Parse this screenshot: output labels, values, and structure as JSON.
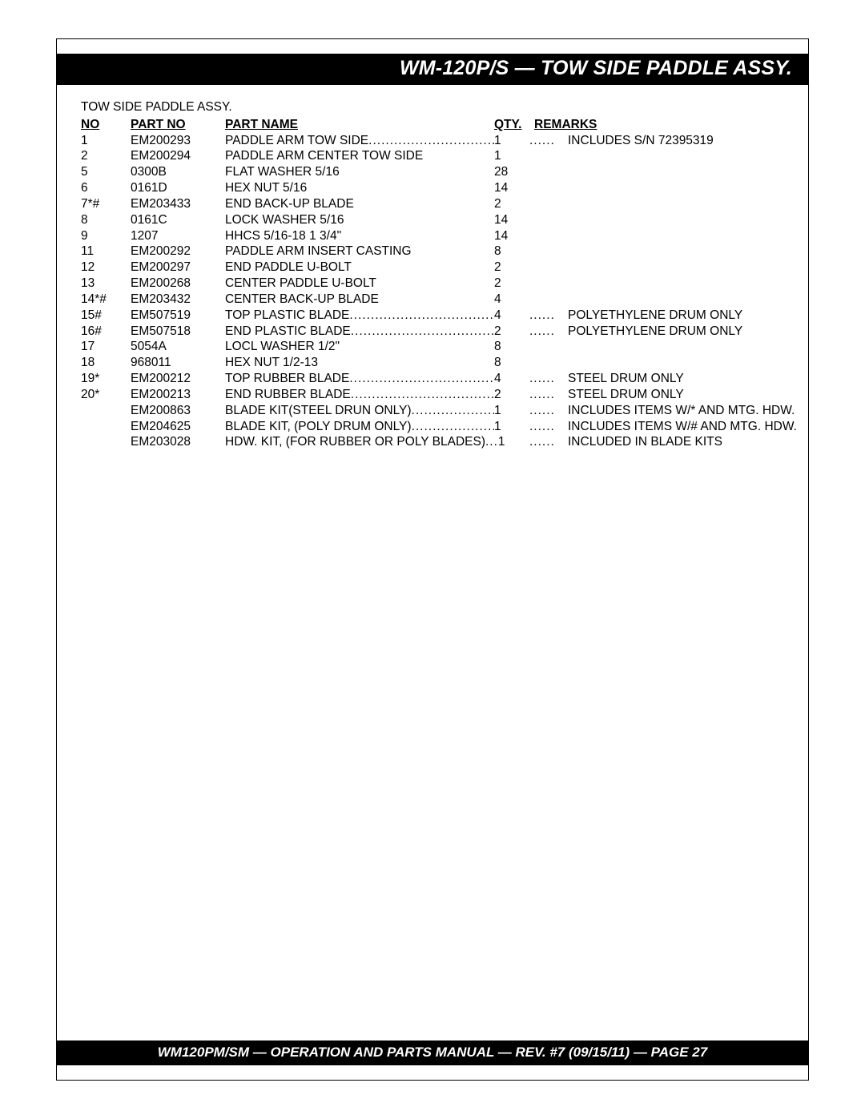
{
  "title": "WM-120P/S — TOW SIDE PADDLE  ASSY.",
  "subtitle": "TOW SIDE PADDLE ASSY.",
  "headers": {
    "no": "NO",
    "partNo": "PART NO",
    "partName": "PART NAME",
    "qty": "QTY.",
    "remarks": "REMARKS"
  },
  "rows": [
    {
      "no": "1",
      "partNo": "EM200293",
      "partName": "PADDLE ARM TOW SIDE",
      "qty": "1",
      "remarks": "INCLUDES S/N 72395319",
      "dotted": true
    },
    {
      "no": "2",
      "partNo": "EM200294",
      "partName": "PADDLE ARM CENTER TOW SIDE",
      "qty": "1",
      "remarks": "",
      "dotted": false
    },
    {
      "no": "5",
      "partNo": "0300B",
      "partName": "FLAT WASHER 5/16",
      "qty": "28",
      "remarks": "",
      "dotted": false
    },
    {
      "no": "6",
      "partNo": "0161D",
      "partName": "HEX NUT 5/16",
      "qty": "14",
      "remarks": "",
      "dotted": false
    },
    {
      "no": "7*#",
      "partNo": "EM203433",
      "partName": "END BACK-UP BLADE",
      "qty": "2",
      "remarks": "",
      "dotted": false
    },
    {
      "no": "8",
      "partNo": "0161C",
      "partName": "LOCK WASHER 5/16",
      "qty": "14",
      "remarks": "",
      "dotted": false
    },
    {
      "no": "9",
      "partNo": "1207",
      "partName": "HHCS 5/16-18 1 3/4\"",
      "qty": "14",
      "remarks": "",
      "dotted": false
    },
    {
      "no": "11",
      "partNo": "EM200292",
      "partName": "PADDLE ARM INSERT CASTING",
      "qty": "8",
      "remarks": "",
      "dotted": false
    },
    {
      "no": "12",
      "partNo": "EM200297",
      "partName": "END PADDLE U-BOLT",
      "qty": "2",
      "remarks": "",
      "dotted": false
    },
    {
      "no": "13",
      "partNo": "EM200268",
      "partName": "CENTER PADDLE U-BOLT",
      "qty": "2",
      "remarks": "",
      "dotted": false
    },
    {
      "no": "14*#",
      "partNo": "EM203432",
      "partName": "CENTER BACK-UP BLADE",
      "qty": "4",
      "remarks": "",
      "dotted": false
    },
    {
      "no": "15#",
      "partNo": "EM507519",
      "partName": "TOP PLASTIC BLADE",
      "qty": "4",
      "remarks": "POLYETHYLENE DRUM ONLY",
      "dotted": true
    },
    {
      "no": "16#",
      "partNo": "EM507518",
      "partName": "END PLASTIC BLADE",
      "qty": "2",
      "remarks": "POLYETHYLENE DRUM ONLY",
      "dotted": true
    },
    {
      "no": "17",
      "partNo": "5054A",
      "partName": "LOCL WASHER 1/2\"",
      "qty": "8",
      "remarks": "",
      "dotted": false
    },
    {
      "no": "18",
      "partNo": "968011",
      "partName": "HEX NUT 1/2-13",
      "qty": "8",
      "remarks": "",
      "dotted": false
    },
    {
      "no": "19*",
      "partNo": "EM200212",
      "partName": "TOP RUBBER BLADE",
      "qty": "4",
      "remarks": "STEEL DRUM ONLY",
      "dotted": true
    },
    {
      "no": "20*",
      "partNo": "EM200213",
      "partName": "END RUBBER BLADE",
      "qty": "2",
      "remarks": "STEEL DRUM ONLY",
      "dotted": true
    },
    {
      "no": "",
      "partNo": "EM200863",
      "partName": "BLADE KIT(STEEL DRUN ONLY)",
      "qty": "1",
      "remarks": "INCLUDES ITEMS W/* AND MTG. HDW.",
      "dotted": true
    },
    {
      "no": "",
      "partNo": "EM204625",
      "partName": "BLADE KIT, (POLY DRUM ONLY)",
      "qty": "1",
      "remarks": "INCLUDES ITEMS W/# AND MTG. HDW.",
      "dotted": true
    },
    {
      "no": "",
      "partNo": "EM203028",
      "partName": "HDW. KIT, (FOR RUBBER OR POLY BLADES)",
      "qty": "1",
      "remarks": "INCLUDED IN BLADE KITS",
      "dotted": true,
      "shortDots": true
    }
  ],
  "footer": "WM120PM/SM — OPERATION AND PARTS MANUAL — REV. #7 (09/15/11) — PAGE 27"
}
